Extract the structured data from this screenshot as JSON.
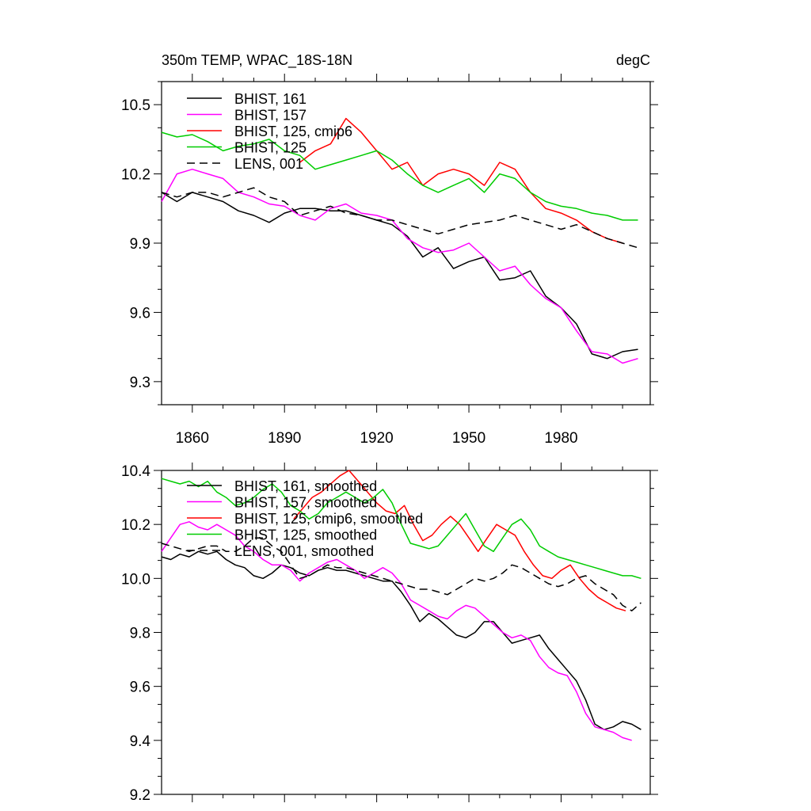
{
  "figure": {
    "units": "degC"
  },
  "chart_data": [
    {
      "type": "line",
      "title": "350m TEMP, WPAC_18S-18N",
      "units": "degC",
      "xlim": [
        1850,
        2009
      ],
      "ylim": [
        9.2,
        10.6
      ],
      "xticks": [
        1860,
        1890,
        1920,
        1950,
        1980
      ],
      "yticks": [
        9.3,
        9.6,
        9.9,
        10.2,
        10.5
      ],
      "ytick_labels": [
        "9.3",
        "9.6",
        "9.9",
        "10.2",
        "10.5"
      ],
      "xtick_labels": [
        "1860",
        "1890",
        "1920",
        "1950",
        "1980"
      ],
      "legend_position": "top-left",
      "series": [
        {
          "name": "BHIST, 161",
          "color": "#000000",
          "dash": "solid",
          "x": [
            1850,
            1855,
            1860,
            1865,
            1870,
            1875,
            1880,
            1885,
            1890,
            1895,
            1900,
            1905,
            1910,
            1915,
            1920,
            1925,
            1930,
            1935,
            1940,
            1945,
            1950,
            1955,
            1960,
            1965,
            1970,
            1975,
            1980,
            1985,
            1990,
            1995,
            2000,
            2005
          ],
          "y": [
            10.12,
            10.08,
            10.12,
            10.1,
            10.08,
            10.04,
            10.02,
            9.99,
            10.03,
            10.05,
            10.05,
            10.04,
            10.04,
            10.02,
            10.0,
            9.98,
            9.93,
            9.84,
            9.88,
            9.79,
            9.82,
            9.84,
            9.74,
            9.75,
            9.78,
            9.67,
            9.62,
            9.55,
            9.42,
            9.4,
            9.43,
            9.44
          ]
        },
        {
          "name": "BHIST, 157",
          "color": "#ff00ff",
          "dash": "solid",
          "x": [
            1850,
            1855,
            1860,
            1865,
            1870,
            1875,
            1880,
            1885,
            1890,
            1895,
            1900,
            1905,
            1910,
            1915,
            1920,
            1925,
            1930,
            1935,
            1940,
            1945,
            1950,
            1955,
            1960,
            1965,
            1970,
            1975,
            1980,
            1985,
            1990,
            1995,
            2000,
            2005
          ],
          "y": [
            10.08,
            10.2,
            10.22,
            10.2,
            10.18,
            10.12,
            10.1,
            10.07,
            10.06,
            10.02,
            10.0,
            10.05,
            10.07,
            10.03,
            10.02,
            10.0,
            9.92,
            9.88,
            9.86,
            9.87,
            9.9,
            9.84,
            9.78,
            9.8,
            9.72,
            9.66,
            9.62,
            9.52,
            9.43,
            9.42,
            9.38,
            9.4
          ]
        },
        {
          "name": "BHIST, 125, cmip6",
          "color": "#ff0000",
          "dash": "solid",
          "x": [
            1895,
            1900,
            1905,
            1910,
            1915,
            1920,
            1925,
            1930,
            1935,
            1940,
            1945,
            1950,
            1955,
            1960,
            1965,
            1970,
            1975,
            1980,
            1985,
            1990,
            1995,
            2000
          ],
          "y": [
            10.25,
            10.3,
            10.33,
            10.44,
            10.38,
            10.3,
            10.22,
            10.25,
            10.15,
            10.2,
            10.22,
            10.2,
            10.15,
            10.25,
            10.22,
            10.12,
            10.05,
            10.03,
            10.0,
            9.95,
            9.92,
            9.9
          ]
        },
        {
          "name": "BHIST, 125",
          "color": "#00cc00",
          "dash": "solid",
          "x": [
            1850,
            1855,
            1860,
            1865,
            1870,
            1875,
            1880,
            1885,
            1890,
            1895,
            1900,
            1905,
            1910,
            1915,
            1920,
            1925,
            1930,
            1935,
            1940,
            1945,
            1950,
            1955,
            1960,
            1965,
            1970,
            1975,
            1980,
            1985,
            1990,
            1995,
            2000,
            2005
          ],
          "y": [
            10.38,
            10.36,
            10.37,
            10.34,
            10.3,
            10.32,
            10.33,
            10.35,
            10.3,
            10.28,
            10.22,
            10.24,
            10.26,
            10.28,
            10.3,
            10.26,
            10.2,
            10.15,
            10.12,
            10.15,
            10.18,
            10.12,
            10.2,
            10.18,
            10.12,
            10.08,
            10.06,
            10.05,
            10.03,
            10.02,
            10.0,
            10.0
          ]
        },
        {
          "name": "LENS, 001",
          "color": "#000000",
          "dash": "dashed",
          "x": [
            1850,
            1855,
            1860,
            1865,
            1870,
            1875,
            1880,
            1885,
            1890,
            1895,
            1900,
            1905,
            1910,
            1915,
            1920,
            1925,
            1930,
            1935,
            1940,
            1945,
            1950,
            1955,
            1960,
            1965,
            1970,
            1975,
            1980,
            1985,
            1990,
            1995,
            2000,
            2005
          ],
          "y": [
            10.12,
            10.1,
            10.12,
            10.12,
            10.1,
            10.12,
            10.14,
            10.1,
            10.08,
            10.02,
            10.04,
            10.06,
            10.03,
            10.02,
            10.0,
            10.0,
            9.98,
            9.96,
            9.94,
            9.96,
            9.98,
            9.99,
            10.0,
            10.02,
            10.0,
            9.98,
            9.96,
            9.98,
            9.95,
            9.92,
            9.9,
            9.88
          ]
        }
      ]
    },
    {
      "type": "line",
      "xlim": [
        1850,
        2009
      ],
      "ylim": [
        9.2,
        10.4
      ],
      "yticks": [
        9.2,
        9.4,
        9.6,
        9.8,
        10.0,
        10.2,
        10.4
      ],
      "ytick_labels": [
        "9.2",
        "9.4",
        "9.6",
        "9.8",
        "10.0",
        "10.2",
        "10.4"
      ],
      "legend_position": "top-left",
      "series": [
        {
          "name": "BHIST, 161, smoothed",
          "color": "#000000",
          "dash": "solid",
          "x": [
            1850,
            1853,
            1856,
            1859,
            1862,
            1865,
            1868,
            1871,
            1874,
            1877,
            1880,
            1883,
            1886,
            1889,
            1892,
            1895,
            1898,
            1901,
            1904,
            1907,
            1910,
            1913,
            1916,
            1919,
            1922,
            1925,
            1928,
            1931,
            1934,
            1937,
            1940,
            1943,
            1946,
            1949,
            1952,
            1955,
            1958,
            1961,
            1964,
            1967,
            1970,
            1973,
            1976,
            1979,
            1982,
            1985,
            1988,
            1991,
            1994,
            1997,
            2000,
            2003,
            2006
          ],
          "y": [
            10.08,
            10.07,
            10.09,
            10.08,
            10.1,
            10.09,
            10.1,
            10.07,
            10.05,
            10.04,
            10.01,
            10.0,
            10.02,
            10.05,
            10.04,
            10.02,
            10.01,
            10.03,
            10.04,
            10.03,
            10.03,
            10.02,
            10.01,
            10.0,
            9.99,
            9.99,
            9.95,
            9.9,
            9.84,
            9.87,
            9.85,
            9.82,
            9.79,
            9.78,
            9.8,
            9.84,
            9.84,
            9.8,
            9.76,
            9.77,
            9.78,
            9.79,
            9.74,
            9.7,
            9.66,
            9.62,
            9.55,
            9.46,
            9.44,
            9.45,
            9.47,
            9.46,
            9.44
          ]
        },
        {
          "name": "BHIST, 157, smoothed",
          "color": "#ff00ff",
          "dash": "solid",
          "x": [
            1850,
            1853,
            1856,
            1859,
            1862,
            1865,
            1868,
            1871,
            1874,
            1877,
            1880,
            1883,
            1886,
            1889,
            1892,
            1895,
            1898,
            1901,
            1904,
            1907,
            1910,
            1913,
            1916,
            1919,
            1922,
            1925,
            1928,
            1931,
            1934,
            1937,
            1940,
            1943,
            1946,
            1949,
            1952,
            1955,
            1958,
            1961,
            1964,
            1967,
            1970,
            1973,
            1976,
            1979,
            1982,
            1985,
            1988,
            1991,
            1994,
            1997,
            2000,
            2003
          ],
          "y": [
            10.1,
            10.15,
            10.2,
            10.21,
            10.19,
            10.18,
            10.2,
            10.18,
            10.16,
            10.12,
            10.1,
            10.07,
            10.05,
            10.05,
            10.03,
            9.99,
            10.02,
            10.04,
            10.06,
            10.07,
            10.05,
            10.03,
            10.0,
            10.02,
            10.04,
            10.02,
            9.98,
            9.92,
            9.9,
            9.88,
            9.86,
            9.85,
            9.88,
            9.9,
            9.89,
            9.86,
            9.83,
            9.8,
            9.78,
            9.79,
            9.77,
            9.71,
            9.67,
            9.65,
            9.64,
            9.58,
            9.5,
            9.45,
            9.44,
            9.43,
            9.41,
            9.4
          ]
        },
        {
          "name": "BHIST, 125, cmip6, smoothed",
          "color": "#ff0000",
          "dash": "solid",
          "x": [
            1893,
            1896,
            1899,
            1902,
            1905,
            1908,
            1911,
            1914,
            1917,
            1920,
            1923,
            1926,
            1929,
            1932,
            1935,
            1938,
            1941,
            1944,
            1947,
            1950,
            1953,
            1956,
            1959,
            1962,
            1965,
            1968,
            1971,
            1974,
            1977,
            1980,
            1983,
            1986,
            1989,
            1992,
            1995,
            1998,
            2001
          ],
          "y": [
            10.22,
            10.26,
            10.3,
            10.32,
            10.35,
            10.38,
            10.4,
            10.36,
            10.32,
            10.28,
            10.25,
            10.24,
            10.27,
            10.2,
            10.14,
            10.16,
            10.2,
            10.23,
            10.2,
            10.15,
            10.1,
            10.15,
            10.2,
            10.18,
            10.16,
            10.1,
            10.05,
            10.01,
            10.0,
            10.03,
            10.05,
            10.0,
            9.96,
            9.93,
            9.91,
            9.89,
            9.88
          ]
        },
        {
          "name": "BHIST, 125, smoothed",
          "color": "#00cc00",
          "dash": "solid",
          "x": [
            1850,
            1853,
            1856,
            1859,
            1862,
            1865,
            1868,
            1871,
            1874,
            1877,
            1880,
            1883,
            1886,
            1889,
            1892,
            1895,
            1898,
            1901,
            1904,
            1907,
            1910,
            1913,
            1916,
            1919,
            1922,
            1925,
            1928,
            1931,
            1934,
            1937,
            1940,
            1943,
            1946,
            1949,
            1952,
            1955,
            1958,
            1961,
            1964,
            1967,
            1970,
            1973,
            1976,
            1979,
            1982,
            1985,
            1988,
            1991,
            1994,
            1997,
            2000,
            2003,
            2006
          ],
          "y": [
            10.37,
            10.36,
            10.35,
            10.36,
            10.34,
            10.36,
            10.32,
            10.3,
            10.27,
            10.28,
            10.3,
            10.33,
            10.35,
            10.32,
            10.27,
            10.25,
            10.22,
            10.24,
            10.28,
            10.3,
            10.32,
            10.3,
            10.28,
            10.3,
            10.33,
            10.28,
            10.2,
            10.13,
            10.12,
            10.11,
            10.12,
            10.16,
            10.2,
            10.24,
            10.18,
            10.12,
            10.1,
            10.15,
            10.2,
            10.22,
            10.18,
            10.12,
            10.1,
            10.08,
            10.07,
            10.06,
            10.05,
            10.04,
            10.03,
            10.02,
            10.01,
            10.01,
            10.0
          ]
        },
        {
          "name": "LENS, 001, smoothed",
          "color": "#000000",
          "dash": "dashed",
          "x": [
            1850,
            1853,
            1856,
            1859,
            1862,
            1865,
            1868,
            1871,
            1874,
            1877,
            1880,
            1883,
            1886,
            1889,
            1892,
            1895,
            1898,
            1901,
            1904,
            1907,
            1910,
            1913,
            1916,
            1919,
            1922,
            1925,
            1928,
            1931,
            1934,
            1937,
            1940,
            1943,
            1946,
            1949,
            1952,
            1955,
            1958,
            1961,
            1964,
            1967,
            1970,
            1973,
            1976,
            1979,
            1982,
            1985,
            1988,
            1991,
            1994,
            1997,
            2000,
            2003,
            2006
          ],
          "y": [
            10.13,
            10.12,
            10.11,
            10.1,
            10.11,
            10.12,
            10.12,
            10.1,
            10.1,
            10.12,
            10.15,
            10.15,
            10.12,
            10.1,
            10.05,
            10.0,
            10.01,
            10.03,
            10.05,
            10.04,
            10.04,
            10.03,
            10.02,
            10.01,
            10.0,
            9.99,
            9.98,
            9.97,
            9.96,
            9.96,
            9.95,
            9.94,
            9.96,
            9.98,
            10.0,
            9.99,
            10.0,
            10.02,
            10.05,
            10.04,
            10.02,
            10.0,
            9.98,
            9.97,
            9.98,
            10.0,
            10.01,
            9.98,
            9.96,
            9.94,
            9.9,
            9.88,
            9.91
          ]
        }
      ]
    }
  ]
}
